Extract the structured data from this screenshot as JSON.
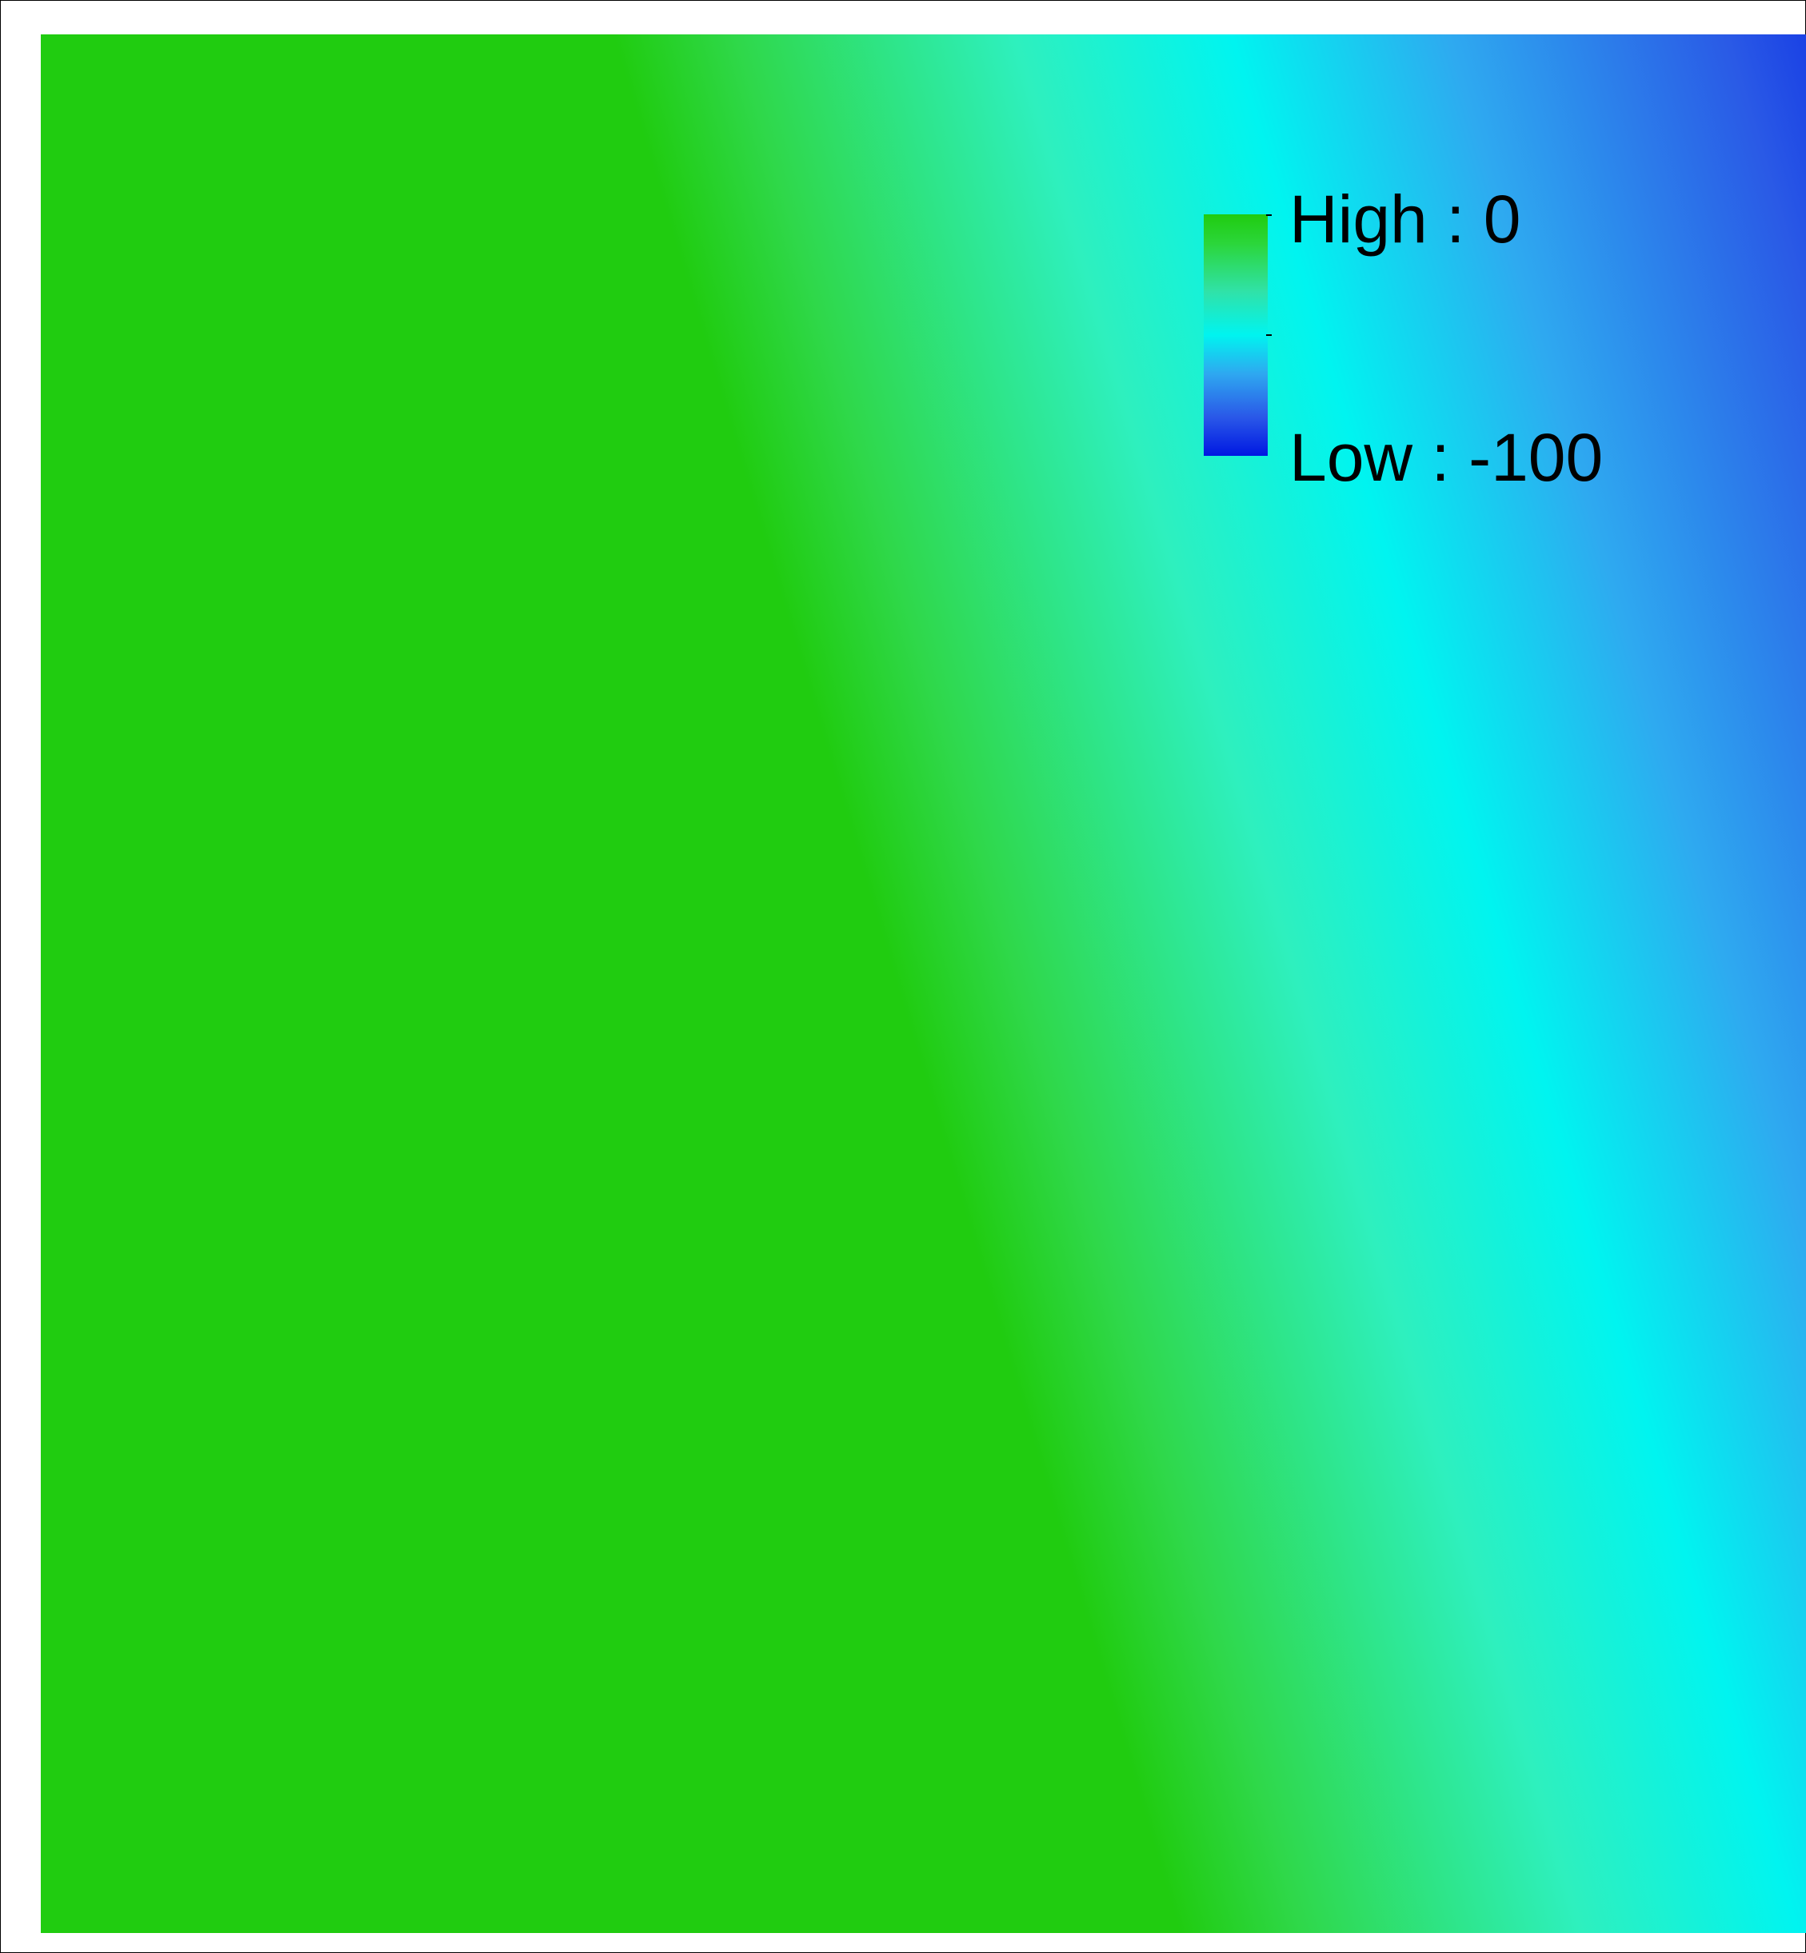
{
  "map": {
    "colors": {
      "high": "#20cc10",
      "mid": "#00f4f0",
      "low": "#0018e2"
    },
    "legend": {
      "high_label": "High : 0",
      "low_label": "Low : -100",
      "high_value": 0,
      "low_value": -100
    }
  }
}
